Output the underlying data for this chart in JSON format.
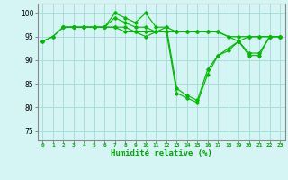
{
  "lines": [
    {
      "x": [
        0,
        1,
        2,
        3,
        4,
        5,
        6,
        7,
        8,
        9,
        10,
        11,
        12,
        13,
        14,
        15,
        16,
        17,
        18,
        19,
        20,
        21,
        22,
        23
      ],
      "y": [
        94,
        95,
        97,
        97,
        97,
        97,
        97,
        97,
        96,
        96,
        96,
        96,
        96,
        96,
        96,
        96,
        96,
        96,
        95,
        94,
        95,
        95,
        95,
        95
      ]
    },
    {
      "x": [
        0,
        1,
        2,
        3,
        4,
        5,
        6,
        7,
        8,
        9,
        10,
        11,
        12,
        13,
        14,
        15,
        16,
        17,
        18,
        19,
        20,
        21,
        22,
        23
      ],
      "y": [
        94,
        95,
        97,
        97,
        97,
        97,
        97,
        99,
        98,
        97,
        97,
        96,
        96,
        83,
        82,
        81,
        87,
        91,
        92,
        94,
        91,
        91,
        95,
        95
      ]
    },
    {
      "x": [
        2,
        3,
        4,
        5,
        6,
        7,
        8,
        9,
        10,
        11,
        12,
        13,
        14,
        15,
        16,
        17,
        18,
        19,
        20,
        21,
        22,
        23
      ],
      "y": [
        97,
        97,
        97,
        97,
        97,
        97,
        97,
        96,
        95,
        96,
        97,
        96,
        96,
        96,
        96,
        96,
        95,
        95,
        95,
        95,
        95,
        95
      ]
    },
    {
      "x": [
        2,
        3,
        4,
        5,
        6,
        7,
        8,
        9,
        10,
        11,
        12,
        13,
        14,
        15,
        16,
        17,
        18,
        19,
        20,
        21,
        22,
        23
      ],
      "y": [
        97,
        97,
        97,
        97,
        97,
        100,
        99,
        98,
        100,
        97,
        97,
        84,
        82.5,
        81.5,
        88,
        91,
        92.5,
        94,
        91.5,
        91.5,
        95,
        95
      ]
    }
  ],
  "line_color": "#00bb00",
  "marker": "D",
  "marker_size": 1.8,
  "bg_color": "#d5f5f5",
  "grid_color": "#aadddd",
  "axis_color": "#888888",
  "xlabel": "Humidité relative (%)",
  "ylabel_ticks": [
    75,
    80,
    85,
    90,
    95,
    100
  ],
  "xticks": [
    0,
    1,
    2,
    3,
    4,
    5,
    6,
    7,
    8,
    9,
    10,
    11,
    12,
    13,
    14,
    15,
    16,
    17,
    18,
    19,
    20,
    21,
    22,
    23
  ],
  "xlim": [
    -0.5,
    23.5
  ],
  "ylim": [
    73,
    102
  ]
}
